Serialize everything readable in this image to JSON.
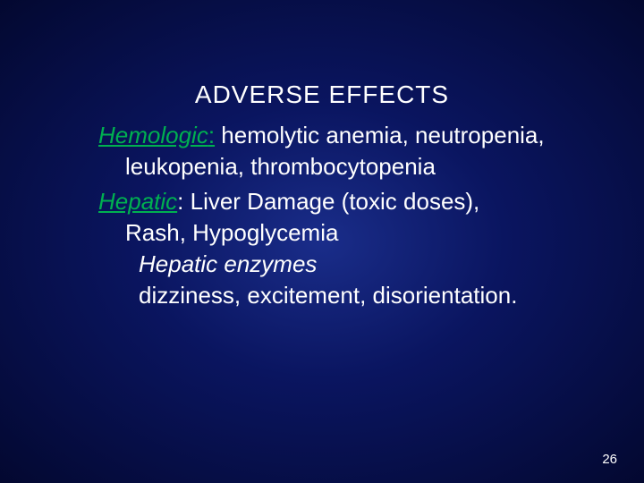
{
  "slide": {
    "title": "ADVERSE  EFFECTS",
    "hemologic": {
      "label": "Hemologic",
      "colon": ":",
      "line1": " hemolytic anemia, neutropenia,",
      "line2": "leukopenia, thrombocytopenia"
    },
    "hepatic": {
      "label": "Hepatic",
      "line1": ": Liver Damage (toxic doses),",
      "line2": "Rash, Hypoglycemia",
      "line3_arrow": " ",
      "line3": "Hepatic enzymes",
      "line4": " dizziness, excitement, disorientation."
    },
    "page_number": "26",
    "colors": {
      "category_color": "#00b050",
      "text_color": "#ffffff",
      "bg_inner": "#1a2d8a",
      "bg_mid": "#0a1560",
      "bg_outer": "#030830"
    },
    "typography": {
      "title_fontsize": 28,
      "body_fontsize": 26,
      "pagenum_fontsize": 15,
      "font_family": "Arial"
    }
  }
}
